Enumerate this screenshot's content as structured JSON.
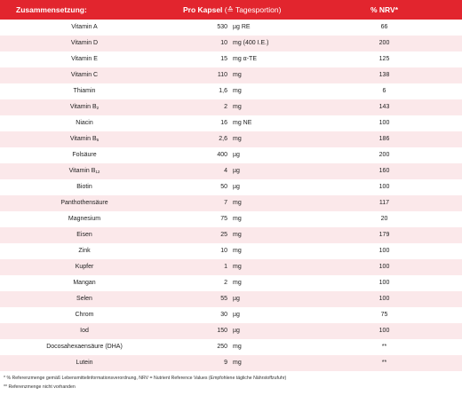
{
  "table": {
    "header": {
      "composition": "Zusammensetzung:",
      "per_capsule": "Pro Kapsel",
      "per_capsule_note": "(≙ Tagesportion)",
      "nrv": "% NRV*"
    },
    "rows": [
      {
        "name": "Vitamin A",
        "amount": "530",
        "unit": "µg RE",
        "nrv": "66"
      },
      {
        "name": "Vitamin D",
        "amount": "10",
        "unit": "mg (400 I.E.)",
        "nrv": "200"
      },
      {
        "name": "Vitamin E",
        "amount": "15",
        "unit": "mg α-TE",
        "nrv": "125"
      },
      {
        "name": "Vitamin C",
        "amount": "110",
        "unit": "mg",
        "nrv": "138"
      },
      {
        "name": "Thiamin",
        "amount": "1,6",
        "unit": "mg",
        "nrv": "6"
      },
      {
        "name": "Vitamin B",
        "sub": "2",
        "amount": "2",
        "unit": "mg",
        "nrv": "143"
      },
      {
        "name": "Niacin",
        "amount": "16",
        "unit": "mg NE",
        "nrv": "100"
      },
      {
        "name": "Vitamin B",
        "sub": "6",
        "amount": "2,6",
        "unit": "mg",
        "nrv": "186"
      },
      {
        "name": "Folsäure",
        "amount": "400",
        "unit": "µg",
        "nrv": "200"
      },
      {
        "name": "Vitamin B",
        "sub": "12",
        "amount": "4",
        "unit": "µg",
        "nrv": "160"
      },
      {
        "name": "Biotin",
        "amount": "50",
        "unit": "µg",
        "nrv": "100"
      },
      {
        "name": "Panthothensäure",
        "amount": "7",
        "unit": "mg",
        "nrv": "117"
      },
      {
        "name": "Magnesium",
        "amount": "75",
        "unit": "mg",
        "nrv": "20"
      },
      {
        "name": "Eisen",
        "amount": "25",
        "unit": "mg",
        "nrv": "179"
      },
      {
        "name": "Zink",
        "amount": "10",
        "unit": "mg",
        "nrv": "100"
      },
      {
        "name": "Kupfer",
        "amount": "1",
        "unit": "mg",
        "nrv": "100"
      },
      {
        "name": "Mangan",
        "amount": "2",
        "unit": "mg",
        "nrv": "100"
      },
      {
        "name": "Selen",
        "amount": "55",
        "unit": "µg",
        "nrv": "100"
      },
      {
        "name": "Chrom",
        "amount": "30",
        "unit": "µg",
        "nrv": "75"
      },
      {
        "name": "Iod",
        "amount": "150",
        "unit": "µg",
        "nrv": "100"
      },
      {
        "name": "Docosahexaensäure (DHA)",
        "amount": "250",
        "unit": "mg",
        "nrv": "**"
      },
      {
        "name": "Lutein",
        "amount": "9",
        "unit": "mg",
        "nrv": "**"
      }
    ],
    "footnotes": [
      "* % Referenzmenge gemäß Lebensmittelinformationsverordnung, NRV = Nutrient Reference Values (Empfohlene tägliche Nährstoffzufuhr)",
      "** Referenzmenge nicht vorhanden"
    ]
  }
}
